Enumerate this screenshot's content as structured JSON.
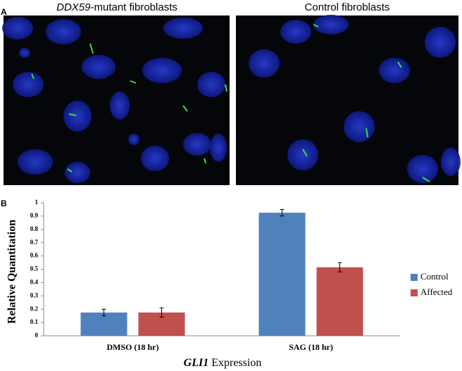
{
  "panel_a": {
    "label": "A",
    "left_title": [
      "DDX59",
      "-mutant fibroblasts"
    ],
    "right_title": "Control fibroblasts"
  },
  "panel_b": {
    "label": "B"
  },
  "chart_data": {
    "type": "bar",
    "y_label": "Relative  Quantitation",
    "x_label": [
      "GLI1",
      " Expression"
    ],
    "categories": [
      "DMSO (18 hr)",
      "SAG (18 hr)"
    ],
    "series": [
      {
        "name": "Control",
        "color": "#4f81bd",
        "values": [
          0.175,
          0.925
        ],
        "errors": [
          0.025,
          0.025
        ]
      },
      {
        "name": "Affected",
        "color": "#c0504d",
        "values": [
          0.175,
          0.515
        ],
        "errors": [
          0.035,
          0.035
        ]
      }
    ],
    "ylim": [
      0,
      1
    ],
    "yticks": [
      0,
      0.1,
      0.2,
      0.3,
      0.4,
      0.5,
      0.6,
      0.7,
      0.8,
      0.9,
      1
    ],
    "legend": "right"
  }
}
